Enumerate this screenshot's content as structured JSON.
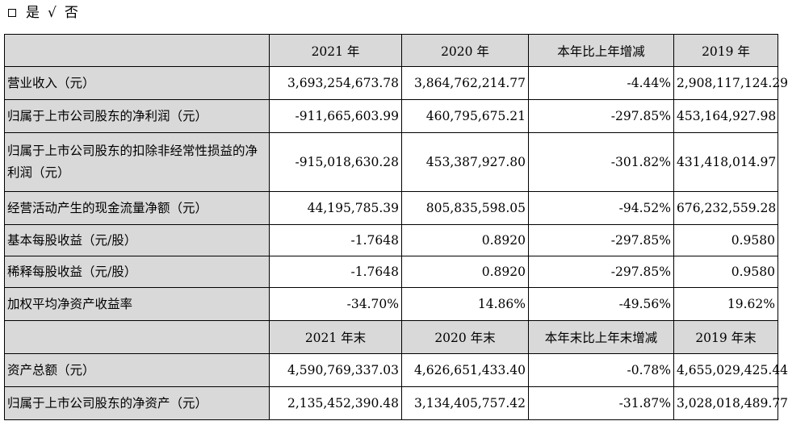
{
  "top_options": {
    "opt1_label": "是",
    "opt2_mark": "√",
    "opt2_label": "否"
  },
  "header1": [
    "",
    "2021 年",
    "2020 年",
    "本年比上年增减",
    "2019 年"
  ],
  "rows1": [
    [
      "营业收入（元）",
      "3,693,254,673.78",
      "3,864,762,214.77",
      "-4.44%",
      "2,908,117,124.29"
    ],
    [
      "归属于上市公司股东的净利润（元）",
      "-911,665,603.99",
      "460,795,675.21",
      "-297.85%",
      "453,164,927.98"
    ],
    [
      "归属于上市公司股东的扣除非经常性损益的净利润（元）",
      "-915,018,630.28",
      "453,387,927.80",
      "-301.82%",
      "431,418,014.97"
    ],
    [
      "经营活动产生的现金流量净额（元）",
      "44,195,785.39",
      "805,835,598.05",
      "-94.52%",
      "676,232,559.28"
    ],
    [
      "基本每股收益（元/股）",
      "-1.7648",
      "0.8920",
      "-297.85%",
      "0.9580"
    ],
    [
      "稀释每股收益（元/股）",
      "-1.7648",
      "0.8920",
      "-297.85%",
      "0.9580"
    ],
    [
      "加权平均净资产收益率",
      "-34.70%",
      "14.86%",
      "-49.56%",
      "19.62%"
    ]
  ],
  "header2": [
    "",
    "2021 年末",
    "2020 年末",
    "本年末比上年末增减",
    "2019 年末"
  ],
  "rows2": [
    [
      "资产总额（元）",
      "4,590,769,337.03",
      "4,626,651,433.40",
      "-0.78%",
      "4,655,029,425.44"
    ],
    [
      "归属于上市公司股东的净资产（元）",
      "2,135,452,390.48",
      "3,134,405,757.42",
      "-31.87%",
      "3,028,018,489.77"
    ]
  ]
}
